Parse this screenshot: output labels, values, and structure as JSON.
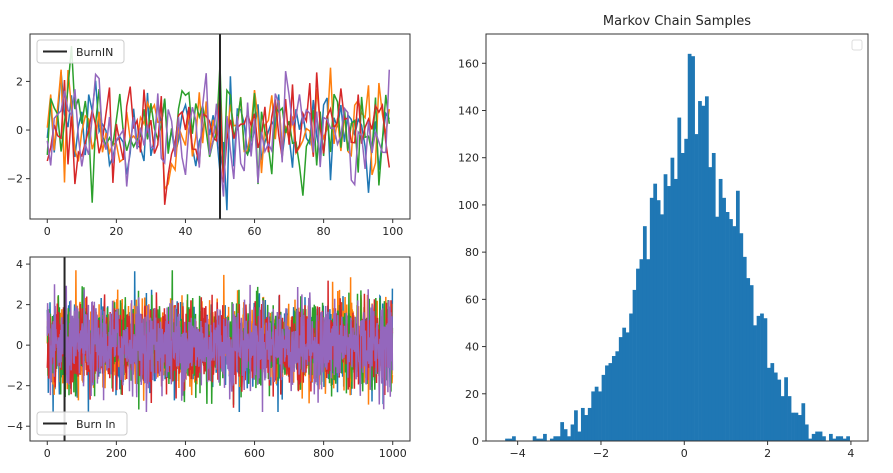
{
  "chart_data": [
    {
      "type": "line",
      "title": "",
      "xlim": [
        -5,
        105
      ],
      "ylim": [
        -3.66,
        3.95
      ],
      "xticks": [
        "0",
        "20",
        "40",
        "60",
        "80",
        "100"
      ],
      "xtick_values": [
        0,
        20,
        40,
        60,
        80,
        100
      ],
      "yticks": [
        "−2",
        "0",
        "2"
      ],
      "ytick_values": [
        -2,
        0,
        2
      ],
      "n_points": 100,
      "series_colors": [
        "#1f77b4",
        "#ff7f0e",
        "#2ca02c",
        "#d62728",
        "#9467bd"
      ],
      "vline": {
        "x": 50,
        "color": "#262626",
        "label": "BurnIN"
      },
      "legend": {
        "position": "upper left",
        "entries": [
          "BurnIN"
        ]
      }
    },
    {
      "type": "line",
      "title": "",
      "xlim": [
        -50,
        1050
      ],
      "ylim": [
        -4.73,
        4.35
      ],
      "xticks": [
        "0",
        "200",
        "400",
        "600",
        "800",
        "1000"
      ],
      "xtick_values": [
        0,
        200,
        400,
        600,
        800,
        1000
      ],
      "yticks": [
        "−4",
        "−2",
        "0",
        "2",
        "4"
      ],
      "ytick_values": [
        -4,
        -2,
        0,
        2,
        4
      ],
      "n_points": 1000,
      "series_colors": [
        "#1f77b4",
        "#ff7f0e",
        "#2ca02c",
        "#d62728",
        "#9467bd"
      ],
      "vline": {
        "x": 50,
        "color": "#262626",
        "label": "Burn In"
      },
      "legend": {
        "position": "lower left",
        "entries": [
          "Burn In"
        ]
      }
    },
    {
      "type": "bar",
      "title": "Markov Chain Samples",
      "xlim": [
        -4.76,
        4.41
      ],
      "ylim": [
        0,
        172.4
      ],
      "xticks": [
        "−4",
        "−2",
        "0",
        "2",
        "4"
      ],
      "xtick_values": [
        -4,
        -2,
        0,
        2,
        4
      ],
      "yticks": [
        "0",
        "20",
        "40",
        "60",
        "80",
        "100",
        "120",
        "140",
        "160"
      ],
      "ytick_values": [
        0,
        20,
        40,
        60,
        80,
        100,
        120,
        140,
        160
      ],
      "bin_range": [
        -4.3,
        3.97
      ],
      "color": "#1f77b4",
      "counts": [
        1,
        1,
        2,
        0,
        0,
        0,
        0,
        0,
        2,
        1,
        1,
        3,
        0,
        1,
        2,
        2,
        8,
        5,
        2,
        7,
        13,
        4,
        14,
        11,
        14,
        21,
        23,
        21,
        28,
        32,
        33,
        36,
        38,
        44,
        48,
        46,
        54,
        64,
        73,
        77,
        91,
        77,
        103,
        109,
        102,
        96,
        113,
        108,
        120,
        111,
        137,
        122,
        128,
        164,
        163,
        130,
        144,
        142,
        146,
        116,
        122,
        95,
        111,
        103,
        97,
        94,
        91,
        106,
        88,
        78,
        69,
        66,
        49,
        53,
        54,
        52,
        31,
        33,
        29,
        26,
        19,
        27,
        19,
        12,
        12,
        11,
        16,
        7,
        1,
        3,
        4,
        4,
        2,
        0,
        3,
        1,
        2,
        2,
        1,
        2
      ],
      "legend": {
        "position": "upper right",
        "entries": []
      }
    }
  ]
}
